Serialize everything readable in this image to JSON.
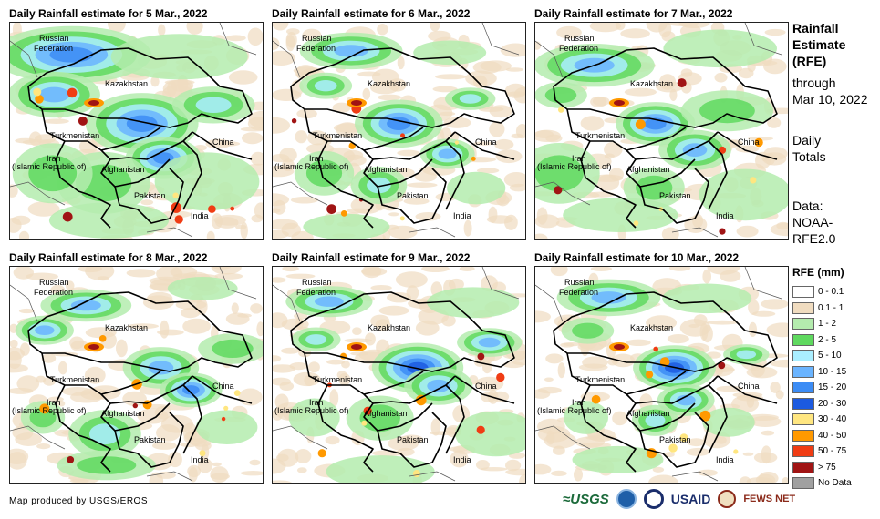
{
  "panels": [
    {
      "title": "Daily Rainfall estimate for 5 Mar., 2022",
      "intensity": 1.0,
      "shift": 0
    },
    {
      "title": "Daily Rainfall estimate for 6 Mar., 2022",
      "intensity": 0.7,
      "shift": 1
    },
    {
      "title": "Daily Rainfall estimate for 7 Mar., 2022",
      "intensity": 0.9,
      "shift": 2
    },
    {
      "title": "Daily Rainfall estimate for 8 Mar., 2022",
      "intensity": 0.75,
      "shift": 3
    },
    {
      "title": "Daily Rainfall estimate for 9 Mar., 2022",
      "intensity": 0.8,
      "shift": 4
    },
    {
      "title": "Daily Rainfall estimate for 10 Mar., 2022",
      "intensity": 0.65,
      "shift": 5
    }
  ],
  "countries": {
    "russia_line1": "Russian",
    "russia_line2": "Federation",
    "kazakhstan": "Kazakhstan",
    "turkmenistan": "Turkmenistan",
    "china": "China",
    "iran_line1": "Iran",
    "iran_line2": "(Islamic Republic of)",
    "afghanistan": "Afghanistan",
    "pakistan": "Pakistan",
    "india": "India"
  },
  "side": {
    "title_line1": "Rainfall",
    "title_line2": "Estimate",
    "title_line3": "(RFE)",
    "through_line1": "through",
    "through_line2": "Mar 10, 2022",
    "daily_line1": "Daily",
    "daily_line2": "Totals",
    "data_line1": "Data:",
    "data_line2": "NOAA-",
    "data_line3": "RFE2.0"
  },
  "legend": {
    "title": "RFE (mm)",
    "items": [
      {
        "label": "0 - 0.1",
        "color": "#ffffff"
      },
      {
        "label": "0.1 - 1",
        "color": "#f0dcc0"
      },
      {
        "label": "1 - 2",
        "color": "#b4ecae"
      },
      {
        "label": "2 - 5",
        "color": "#5fd95f"
      },
      {
        "label": "5 - 10",
        "color": "#aaeeff"
      },
      {
        "label": "10 - 15",
        "color": "#6ab4ff"
      },
      {
        "label": "15 - 20",
        "color": "#3c8cf5"
      },
      {
        "label": "20 - 30",
        "color": "#1c5ae0"
      },
      {
        "label": "30 - 40",
        "color": "#ffe680"
      },
      {
        "label": "40 - 50",
        "color": "#ff9900"
      },
      {
        "label": "50 - 75",
        "color": "#f03c14"
      },
      {
        "label": "> 75",
        "color": "#a01414"
      },
      {
        "label": "No Data",
        "color": "#a0a0a0"
      }
    ]
  },
  "credit": "Map produced by USGS/EROS",
  "logos": {
    "usgs": "≈USGS",
    "usaid": "USAID",
    "fews": "FEWS NET"
  }
}
